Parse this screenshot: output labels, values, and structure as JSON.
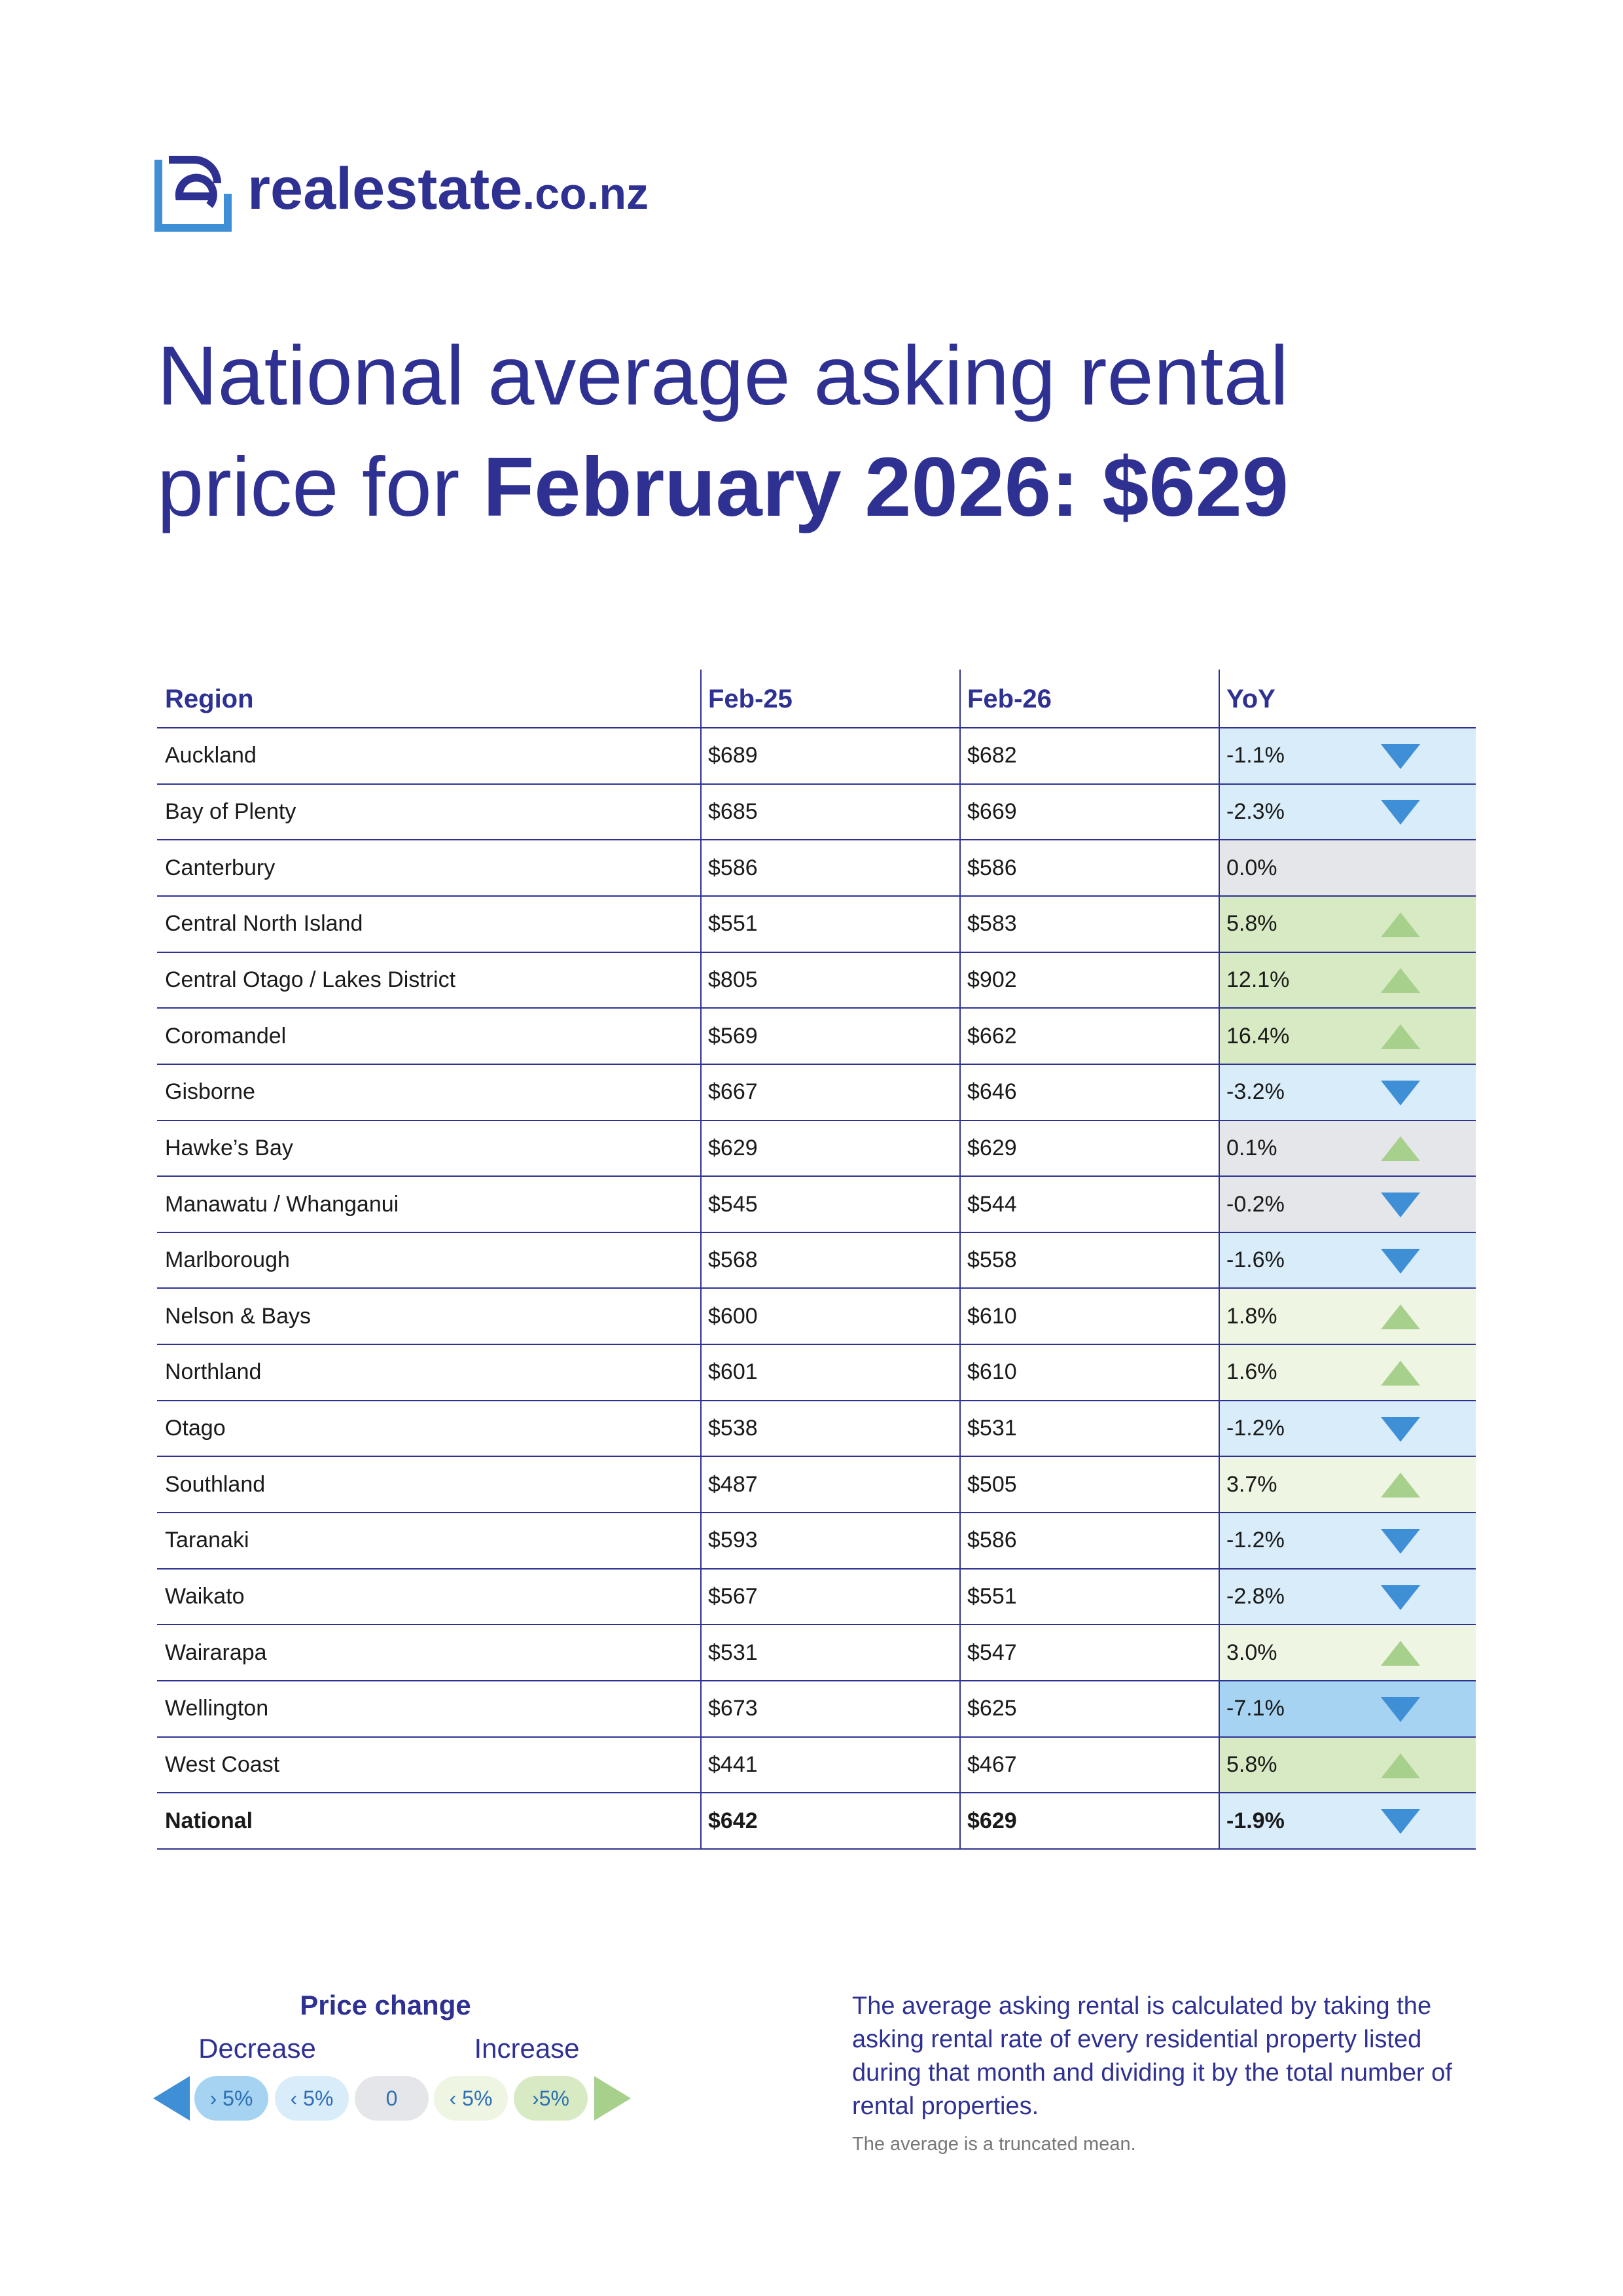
{
  "logo": {
    "name": "realestate",
    "domain": ".co.nz"
  },
  "title": {
    "line1": "National average asking rental",
    "prefix": "price for ",
    "bold": "February 2026: $629"
  },
  "table": {
    "columns": [
      "Region",
      "Feb-25",
      "Feb-26",
      "YoY"
    ],
    "rows": [
      {
        "cells": [
          "Auckland",
          "$689",
          "$682",
          "-1.1%"
        ],
        "color": "#d9ecf9",
        "arrow": "down"
      },
      {
        "cells": [
          "Bay of Plenty",
          "$685",
          "$669",
          "-2.3%"
        ],
        "color": "#d9ecf9",
        "arrow": "down"
      },
      {
        "cells": [
          "Canterbury",
          "$586",
          "$586",
          "0.0%"
        ],
        "color": "#e5e6ea",
        "arrow": "none"
      },
      {
        "cells": [
          "Central North Island",
          "$551",
          "$583",
          "5.8%"
        ],
        "color": "#d8eac3",
        "arrow": "up"
      },
      {
        "cells": [
          "Central Otago / Lakes District",
          "$805",
          "$902",
          "12.1%"
        ],
        "color": "#d8eac3",
        "arrow": "up"
      },
      {
        "cells": [
          "Coromandel",
          "$569",
          "$662",
          "16.4%"
        ],
        "color": "#d8eac3",
        "arrow": "up"
      },
      {
        "cells": [
          "Gisborne",
          "$667",
          "$646",
          "-3.2%"
        ],
        "color": "#d9ecf9",
        "arrow": "down"
      },
      {
        "cells": [
          "Hawke’s Bay",
          "$629",
          "$629",
          "0.1%"
        ],
        "color": "#e5e6ea",
        "arrow": "up"
      },
      {
        "cells": [
          "Manawatu / Whanganui",
          "$545",
          "$544",
          "-0.2%"
        ],
        "color": "#e5e6ea",
        "arrow": "down"
      },
      {
        "cells": [
          "Marlborough",
          "$568",
          "$558",
          "-1.6%"
        ],
        "color": "#d9ecf9",
        "arrow": "down"
      },
      {
        "cells": [
          "Nelson & Bays",
          "$600",
          "$610",
          "1.8%"
        ],
        "color": "#eef5e3",
        "arrow": "up"
      },
      {
        "cells": [
          "Northland",
          "$601",
          "$610",
          "1.6%"
        ],
        "color": "#eef5e3",
        "arrow": "up"
      },
      {
        "cells": [
          "Otago",
          "$538",
          "$531",
          "-1.2%"
        ],
        "color": "#d9ecf9",
        "arrow": "down"
      },
      {
        "cells": [
          "Southland",
          "$487",
          "$505",
          "3.7%"
        ],
        "color": "#eef5e3",
        "arrow": "up"
      },
      {
        "cells": [
          "Taranaki",
          "$593",
          "$586",
          "-1.2%"
        ],
        "color": "#d9ecf9",
        "arrow": "down"
      },
      {
        "cells": [
          "Waikato",
          "$567",
          "$551",
          "-2.8%"
        ],
        "color": "#d9ecf9",
        "arrow": "down"
      },
      {
        "cells": [
          "Wairarapa",
          "$531",
          "$547",
          "3.0%"
        ],
        "color": "#eef5e3",
        "arrow": "up"
      },
      {
        "cells": [
          "Wellington",
          "$673",
          "$625",
          "-7.1%"
        ],
        "color": "#a5d3f1",
        "arrow": "down"
      },
      {
        "cells": [
          "West Coast",
          "$441",
          "$467",
          "5.8%"
        ],
        "color": "#d8eac3",
        "arrow": "up"
      },
      {
        "cells": [
          "National",
          "$642",
          "$629",
          "-1.9%"
        ],
        "color": "#d9ecf9",
        "arrow": "down",
        "bold": true
      }
    ]
  },
  "legend": {
    "title": "Price change",
    "decrease": "Decrease",
    "increase": "Increase",
    "items": [
      {
        "label": "› 5%",
        "color": "#a5d3f1"
      },
      {
        "label": "‹ 5%",
        "color": "#d9ecf9"
      },
      {
        "label": "0",
        "color": "#e5e6ea"
      },
      {
        "label": "‹ 5%",
        "color": "#eef5e3"
      },
      {
        "label": "›5%",
        "color": "#d8eac3"
      }
    ]
  },
  "note": {
    "text": "The average asking rental is calculated by taking the asking rental rate of every residential property listed during that month and dividing it by the total number of rental properties.",
    "small": "The average is a truncated mean."
  }
}
